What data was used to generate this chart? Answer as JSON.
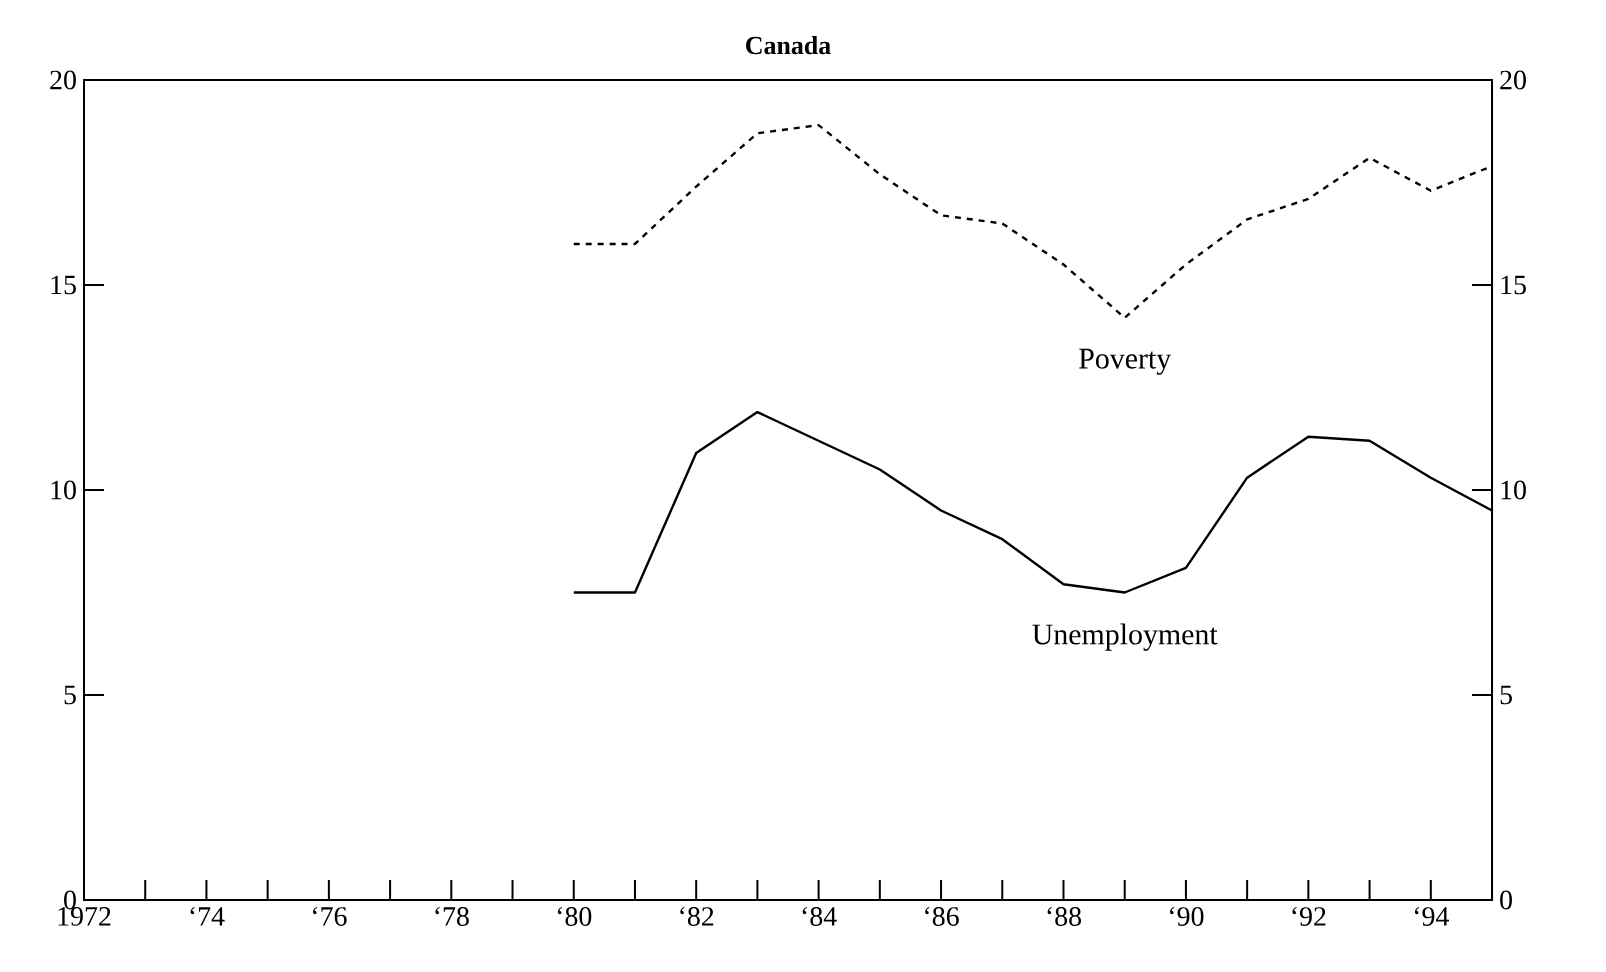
{
  "chart_data": {
    "type": "line",
    "title": "Canada",
    "categories": [
      "1972",
      null,
      "‘74",
      null,
      "‘76",
      null,
      "‘78",
      null,
      "‘80",
      null,
      "‘82",
      null,
      "‘84",
      null,
      "‘86",
      null,
      "‘88",
      null,
      "‘90",
      null,
      "‘92",
      null,
      "‘94",
      null
    ],
    "series": [
      {
        "name": "Poverty",
        "color": "#000000",
        "line_style": "dashed",
        "values": [
          null,
          null,
          null,
          null,
          null,
          null,
          null,
          null,
          16.0,
          16.0,
          17.4,
          18.7,
          18.9,
          17.7,
          16.7,
          16.5,
          15.5,
          14.2,
          15.5,
          16.6,
          17.1,
          18.1,
          17.3,
          17.9
        ]
      },
      {
        "name": "Unemployment",
        "color": "#000000",
        "line_style": "solid",
        "values": [
          null,
          null,
          null,
          null,
          null,
          null,
          null,
          null,
          7.5,
          7.5,
          10.9,
          11.9,
          11.2,
          10.5,
          9.5,
          8.8,
          7.7,
          7.5,
          8.1,
          10.3,
          11.3,
          11.2,
          10.3,
          9.5
        ]
      }
    ],
    "ylim": [
      0,
      20
    ],
    "yticks": [
      0,
      5,
      10,
      15,
      20
    ],
    "y2lim": [
      0,
      20
    ],
    "y2ticks": [
      0,
      5,
      10,
      15,
      20
    ],
    "grid": false,
    "legend": false,
    "marker": "none"
  }
}
